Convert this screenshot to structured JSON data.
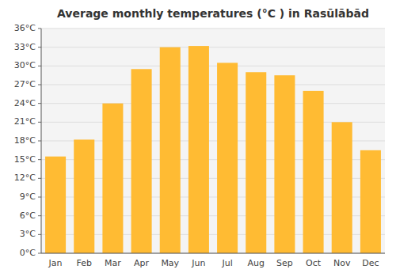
{
  "chart_data": {
    "type": "bar",
    "title": "Average monthly temperatures (°C ) in Rasūlābād",
    "categories": [
      "Jan",
      "Feb",
      "Mar",
      "Apr",
      "May",
      "Jun",
      "Jul",
      "Aug",
      "Sep",
      "Oct",
      "Nov",
      "Dec"
    ],
    "values": [
      15.5,
      18.2,
      24.0,
      29.5,
      33.0,
      33.2,
      30.5,
      29.0,
      28.5,
      26.0,
      21.0,
      16.5
    ],
    "color": "#FFBB33",
    "ylim": [
      0,
      36
    ],
    "yticks": [
      {
        "value": 0,
        "label": "0°C"
      },
      {
        "value": 3,
        "label": "3°C"
      },
      {
        "value": 6,
        "label": "6°C"
      },
      {
        "value": 9,
        "label": "9°C"
      },
      {
        "value": 12,
        "label": "12°C"
      },
      {
        "value": 15,
        "label": "15°C"
      },
      {
        "value": 18,
        "label": "18°C"
      },
      {
        "value": 21,
        "label": "21°C"
      },
      {
        "value": 24,
        "label": "24°C"
      },
      {
        "value": 27,
        "label": "27°C"
      },
      {
        "value": 30,
        "label": "30°C"
      },
      {
        "value": 33,
        "label": "33°C"
      },
      {
        "value": 36,
        "label": "36°C"
      }
    ],
    "grid": true
  }
}
